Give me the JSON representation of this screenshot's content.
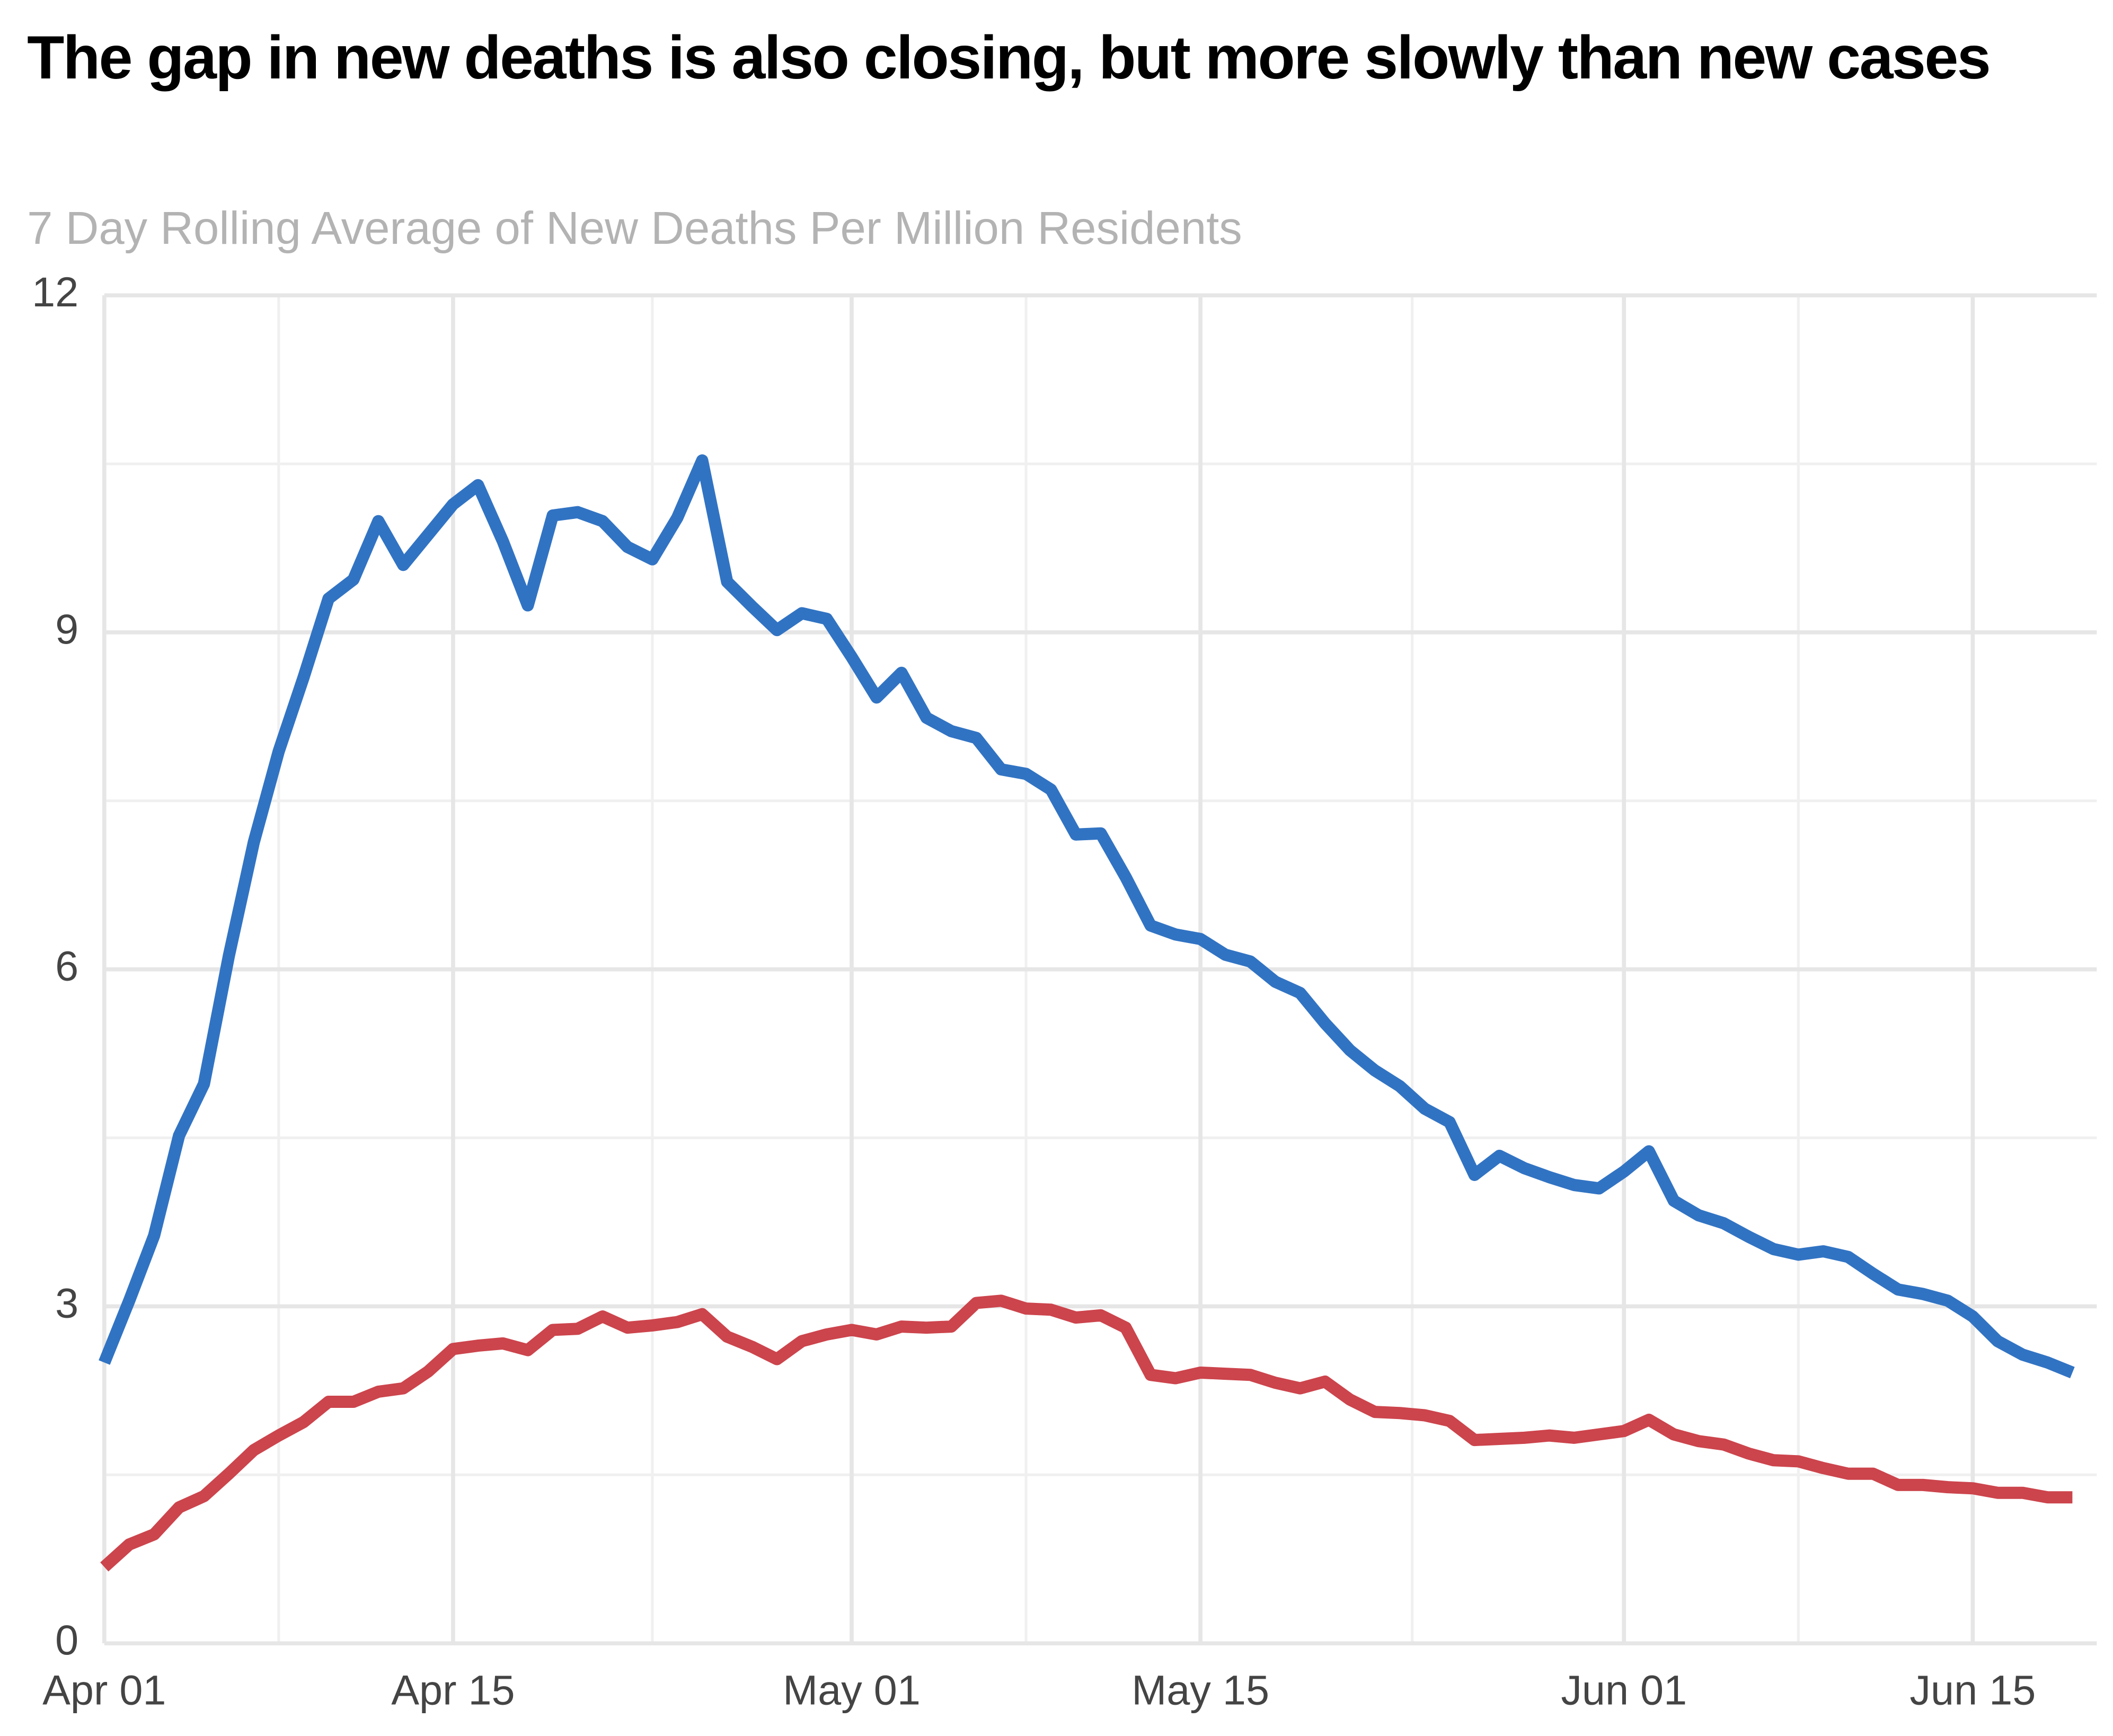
{
  "chart_data": {
    "type": "line",
    "title": "The gap in new deaths is also closing, but more slowly than new cases",
    "subtitle": "7 Day Rolling Average of New Deaths Per Million Residents",
    "categories": [
      "Apr 01",
      "Apr 02",
      "Apr 03",
      "Apr 04",
      "Apr 05",
      "Apr 06",
      "Apr 07",
      "Apr 08",
      "Apr 09",
      "Apr 10",
      "Apr 11",
      "Apr 12",
      "Apr 13",
      "Apr 14",
      "Apr 15",
      "Apr 16",
      "Apr 17",
      "Apr 18",
      "Apr 19",
      "Apr 20",
      "Apr 21",
      "Apr 22",
      "Apr 23",
      "Apr 24",
      "Apr 25",
      "Apr 26",
      "Apr 27",
      "Apr 28",
      "Apr 29",
      "Apr 30",
      "May 01",
      "May 02",
      "May 03",
      "May 04",
      "May 05",
      "May 06",
      "May 07",
      "May 08",
      "May 09",
      "May 10",
      "May 11",
      "May 12",
      "May 13",
      "May 14",
      "May 15",
      "May 16",
      "May 17",
      "May 18",
      "May 19",
      "May 20",
      "May 21",
      "May 22",
      "May 23",
      "May 24",
      "May 25",
      "May 26",
      "May 27",
      "May 28",
      "May 29",
      "May 30",
      "May 31",
      "Jun 01",
      "Jun 02",
      "Jun 03",
      "Jun 04",
      "Jun 05",
      "Jun 06",
      "Jun 07",
      "Jun 08",
      "Jun 09",
      "Jun 10",
      "Jun 11",
      "Jun 12",
      "Jun 13",
      "Jun 14",
      "Jun 15",
      "Jun 16",
      "Jun 17",
      "Jun 18",
      "Jun 19"
    ],
    "series": [
      {
        "color": "#3173c3",
        "values": [
          2.5,
          3.05,
          3.63,
          4.52,
          4.98,
          6.12,
          7.13,
          7.94,
          8.6,
          9.3,
          9.47,
          9.99,
          9.6,
          9.87,
          10.14,
          10.31,
          9.81,
          9.24,
          10.04,
          10.07,
          9.99,
          9.76,
          9.65,
          10.02,
          10.53,
          9.45,
          9.23,
          9.02,
          9.17,
          9.12,
          8.78,
          8.42,
          8.64,
          8.24,
          8.12,
          8.06,
          7.78,
          7.74,
          7.6,
          7.2,
          7.21,
          6.82,
          6.39,
          6.31,
          6.27,
          6.13,
          6.07,
          5.89,
          5.79,
          5.52,
          5.28,
          5.1,
          4.96,
          4.76,
          4.64,
          4.17,
          4.34,
          4.23,
          4.15,
          4.08,
          4.05,
          4.2,
          4.38,
          3.94,
          3.81,
          3.74,
          3.62,
          3.51,
          3.46,
          3.49,
          3.44,
          3.29,
          3.15,
          3.11,
          3.05,
          2.91,
          2.69,
          2.57,
          2.5,
          2.41
        ]
      },
      {
        "color": "#cc444c",
        "values": [
          0.68,
          0.88,
          0.97,
          1.21,
          1.31,
          1.51,
          1.72,
          1.85,
          1.97,
          2.15,
          2.15,
          2.24,
          2.27,
          2.42,
          2.62,
          2.65,
          2.67,
          2.61,
          2.79,
          2.8,
          2.91,
          2.81,
          2.83,
          2.86,
          2.93,
          2.73,
          2.64,
          2.53,
          2.69,
          2.75,
          2.79,
          2.75,
          2.82,
          2.81,
          2.82,
          3.03,
          3.05,
          2.98,
          2.97,
          2.9,
          2.92,
          2.81,
          2.39,
          2.36,
          2.41,
          2.4,
          2.39,
          2.32,
          2.27,
          2.33,
          2.17,
          2.06,
          2.05,
          2.03,
          1.98,
          1.81,
          1.82,
          1.83,
          1.85,
          1.83,
          1.86,
          1.89,
          1.99,
          1.86,
          1.8,
          1.77,
          1.69,
          1.63,
          1.62,
          1.56,
          1.51,
          1.51,
          1.41,
          1.41,
          1.39,
          1.38,
          1.34,
          1.34,
          1.3,
          1.3
        ]
      }
    ],
    "xticks": [
      "Apr 01",
      "Apr 15",
      "May 01",
      "May 15",
      "Jun 01",
      "Jun 15"
    ],
    "ylim": [
      0,
      12
    ],
    "yticks": [
      0,
      3,
      6,
      9,
      12
    ],
    "grid": true
  }
}
